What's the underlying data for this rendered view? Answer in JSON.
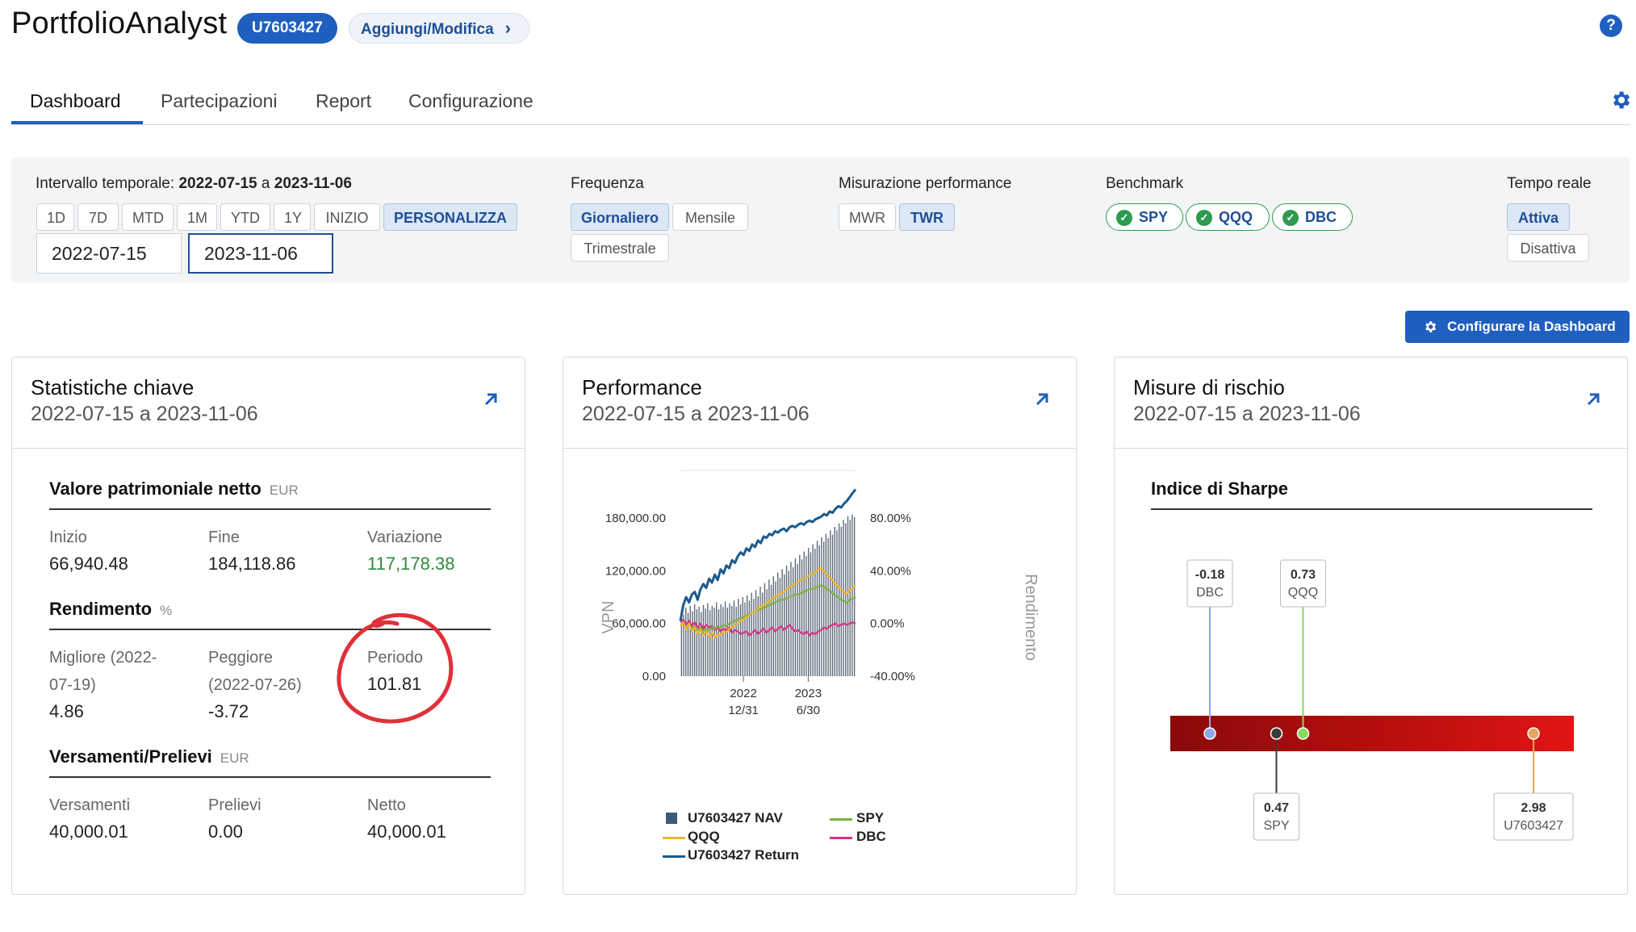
{
  "header": {
    "app_title": "PortfolioAnalyst",
    "account_id": "U7603427",
    "edit_label": "Aggiungi/Modifica",
    "help_icon": "question-icon",
    "settings_icon": "gear-icon"
  },
  "tabs": [
    {
      "label": "Dashboard",
      "active": true
    },
    {
      "label": "Partecipazioni",
      "active": false
    },
    {
      "label": "Report",
      "active": false
    },
    {
      "label": "Configurazione",
      "active": false
    }
  ],
  "controls": {
    "interval_label": "Intervallo temporale:",
    "interval_from": "2022-07-15",
    "interval_sep": "a",
    "interval_to": "2023-11-06",
    "ranges": [
      "1D",
      "7D",
      "MTD",
      "1M",
      "YTD",
      "1Y",
      "INIZIO",
      "PERSONALIZZA"
    ],
    "range_selected": "PERSONALIZZA",
    "date_from": "2022-07-15",
    "date_to": "2023-11-06",
    "frequency_label": "Frequenza",
    "frequencies": [
      "Giornaliero",
      "Mensile",
      "Trimestrale"
    ],
    "frequency_selected": "Giornaliero",
    "measure_label": "Misurazione performance",
    "measures": [
      "MWR",
      "TWR"
    ],
    "measure_selected": "TWR",
    "benchmark_label": "Benchmark",
    "benchmarks": [
      "SPY",
      "QQQ",
      "DBC"
    ],
    "realtime_label": "Tempo reale",
    "realtime": [
      "Attiva",
      "Disattiva"
    ],
    "realtime_selected": "Attiva",
    "config_button": "Configurare la Dashboard"
  },
  "cards": {
    "stats": {
      "title": "Statistiche chiave",
      "subtitle": "2022-07-15 a 2023-11-06",
      "nav": {
        "title": "Valore patrimoniale netto",
        "unit": "EUR",
        "start_label": "Inizio",
        "start_value": "66,940.48",
        "end_label": "Fine",
        "end_value": "184,118.86",
        "change_label": "Variazione",
        "change_value": "117,178.38"
      },
      "returns": {
        "title": "Rendimento",
        "unit": "%",
        "best_label_1": "Migliore (2022-",
        "best_label_2": "07-19)",
        "best_value": "4.86",
        "worst_label_1": "Peggiore",
        "worst_label_2": "(2022-07-26)",
        "worst_value": "-3.72",
        "period_label": "Periodo",
        "period_value": "101.81"
      },
      "flows": {
        "title": "Versamenti/Prelievi",
        "unit": "EUR",
        "deposits_label": "Versamenti",
        "deposits_value": "40,000.01",
        "withdrawals_label": "Prelievi",
        "withdrawals_value": "0.00",
        "net_label": "Netto",
        "net_value": "40,000.01"
      }
    },
    "performance": {
      "title": "Performance",
      "subtitle": "2022-07-15 a 2023-11-06"
    },
    "risk": {
      "title": "Misure di rischio",
      "subtitle": "2022-07-15 a 2023-11-06",
      "section_title": "Indice di Sharpe"
    }
  },
  "chart_data": [
    {
      "type": "line",
      "left_axis_label": "VPN",
      "right_axis_label": "Rendimento",
      "left_ticks": [
        "180,000.00",
        "120,000.00",
        "60,000.00",
        "0.00"
      ],
      "left_tick_values": [
        180000,
        120000,
        60000,
        0
      ],
      "right_ticks": [
        "80.00%",
        "40.00%",
        "0.00%",
        "-40.00%"
      ],
      "right_tick_values": [
        80,
        40,
        0,
        -40
      ],
      "ylim_left": [
        0,
        180000
      ],
      "ylim_right": [
        -40,
        80
      ],
      "x_ticks": [
        {
          "year": "2022",
          "date": "12/31"
        },
        {
          "year": "2023",
          "date": "6/30"
        }
      ],
      "nav_series_name": "U7603427 NAV",
      "nav_bars": [
        75000,
        70000,
        78000,
        72000,
        80000,
        74000,
        82000,
        76000,
        79000,
        73000,
        81000,
        77000,
        83000,
        75000,
        80000,
        78000,
        84000,
        76000,
        82000,
        79000,
        85000,
        78000,
        83000,
        80000,
        86000,
        79000,
        88000,
        82000,
        90000,
        84000,
        92000,
        86000,
        95000,
        88000,
        98000,
        91000,
        102000,
        95000,
        106000,
        99000,
        110000,
        104000,
        114000,
        108000,
        118000,
        112000,
        122000,
        116000,
        126000,
        120000,
        130000,
        124000,
        134000,
        128000,
        138000,
        133000,
        142000,
        137000,
        146000,
        141000,
        150000,
        145000,
        154000,
        149000,
        158000,
        153000,
        162000,
        157000,
        166000,
        161000,
        170000,
        166000,
        174000,
        170000,
        178000,
        174000,
        182000,
        178000,
        184000,
        181000
      ],
      "series": [
        {
          "name": "U7603427 Return",
          "color": "#1d5a8c",
          "values": [
            2,
            14,
            20,
            16,
            22,
            24,
            18,
            26,
            30,
            27,
            34,
            31,
            37,
            33,
            41,
            38,
            44,
            42,
            48,
            46,
            51,
            54,
            52,
            57,
            55,
            60,
            58,
            63,
            61,
            66,
            65,
            68,
            67,
            70,
            69,
            71,
            72,
            70,
            73,
            74,
            73,
            75,
            76,
            75,
            77,
            78,
            77,
            79,
            80,
            81,
            83,
            82,
            85,
            84,
            87,
            89,
            88,
            91,
            93,
            96,
            99,
            101.81
          ]
        },
        {
          "name": "QQQ",
          "color": "#f0b429",
          "values": [
            -2,
            1,
            -4,
            0,
            -6,
            -3,
            -8,
            -5,
            -9,
            -6,
            -10,
            -7,
            -11,
            -8,
            -9,
            -6,
            -7,
            -4,
            -3,
            -1,
            0,
            2,
            3,
            5,
            6,
            8,
            9,
            11,
            13,
            14,
            16,
            17,
            19,
            20,
            22,
            23,
            24,
            26,
            27,
            29,
            30,
            31,
            33,
            34,
            35,
            37,
            38,
            39,
            41,
            42,
            40,
            37,
            35,
            33,
            30,
            28,
            26,
            24,
            22,
            25,
            27,
            29
          ]
        },
        {
          "name": "SPY",
          "color": "#7cb342",
          "values": [
            -2,
            0,
            -3,
            -1,
            -4,
            -2,
            -5,
            -3,
            -6,
            -4,
            -5,
            -3,
            -4,
            -2,
            -3,
            -1,
            -2,
            0,
            1,
            2,
            3,
            4,
            5,
            6,
            7,
            8,
            9,
            10,
            11,
            12,
            13,
            14,
            15,
            16,
            17,
            18,
            18,
            19,
            20,
            21,
            22,
            22,
            23,
            24,
            25,
            26,
            26,
            27,
            28,
            29,
            28,
            26,
            25,
            23,
            21,
            20,
            18,
            17,
            16,
            18,
            19,
            20
          ]
        },
        {
          "name": "DBC",
          "color": "#d63384",
          "values": [
            1,
            3,
            -1,
            2,
            -2,
            1,
            -3,
            0,
            -4,
            -1,
            -3,
            -2,
            -5,
            -3,
            -6,
            -4,
            -5,
            -3,
            -7,
            -5,
            -6,
            -8,
            -7,
            -6,
            -9,
            -7,
            -5,
            -8,
            -6,
            -4,
            -7,
            -5,
            -3,
            -6,
            -4,
            -2,
            -5,
            -3,
            -1,
            -4,
            -6,
            -5,
            -7,
            -8,
            -6,
            -9,
            -7,
            -8,
            -6,
            -5,
            -3,
            -4,
            -2,
            -1,
            0,
            -2,
            -1,
            0,
            -1,
            0,
            1,
            0
          ]
        }
      ]
    },
    {
      "type": "scatter",
      "title": "Indice di Sharpe",
      "points": [
        {
          "name": "DBC",
          "value": -0.18,
          "label": "-0.18",
          "color": "#8ea8e8"
        },
        {
          "name": "QQQ",
          "value": 0.73,
          "label": "0.73",
          "color": "#86d95a"
        },
        {
          "name": "SPY",
          "value": 0.47,
          "label": "0.47",
          "color": "#3a3a3a"
        },
        {
          "name": "U7603427",
          "value": 2.98,
          "label": "2.98",
          "color": "#f0a35c"
        }
      ],
      "xlim": [
        -0.18,
        2.98
      ]
    }
  ]
}
